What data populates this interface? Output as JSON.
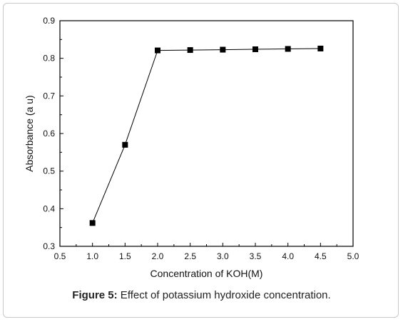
{
  "caption": {
    "label": "Figure 5:",
    "text": " Effect of potassium hydroxide concentration."
  },
  "chart_data": {
    "type": "line",
    "xlabel": "Concentration of KOH(M)",
    "ylabel": "Absorbance (a u)",
    "xlim": [
      0.5,
      5.0
    ],
    "ylim": [
      0.3,
      0.9
    ],
    "xticks": [
      "0.5",
      "1.0",
      "1.5",
      "2.0",
      "2.5",
      "3.0",
      "3.5",
      "4.0",
      "4.5",
      "5.0"
    ],
    "yticks": [
      "0.3",
      "0.4",
      "0.5",
      "0.6",
      "0.7",
      "0.8",
      "0.9"
    ],
    "grid": false,
    "marker": "square",
    "line_color": "#000000",
    "x": [
      1.0,
      1.5,
      2.0,
      2.5,
      3.0,
      3.5,
      4.0,
      4.5
    ],
    "y": [
      0.362,
      0.57,
      0.821,
      0.822,
      0.823,
      0.824,
      0.825,
      0.826
    ]
  }
}
